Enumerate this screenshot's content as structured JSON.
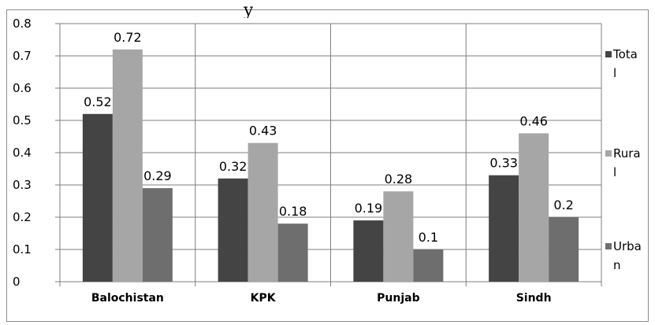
{
  "chart_data": {
    "type": "bar",
    "categories": [
      "Balochistan",
      "KPK",
      "Punjab",
      "Sindh"
    ],
    "series": [
      {
        "name": "Total",
        "values": [
          0.52,
          0.32,
          0.19,
          0.33
        ],
        "labels": [
          "0.52",
          "0.32",
          "0.19",
          "0.33"
        ],
        "color": "#444444",
        "legend_lines": [
          "Tota",
          "l"
        ]
      },
      {
        "name": "Rural",
        "values": [
          0.72,
          0.43,
          0.28,
          0.46
        ],
        "labels": [
          "0.72",
          "0.43",
          "0.28",
          "0.46"
        ],
        "color": "#a6a6a6",
        "legend_lines": [
          "Rura",
          "l"
        ]
      },
      {
        "name": "Urban",
        "values": [
          0.29,
          0.18,
          0.1,
          0.2
        ],
        "labels": [
          "0.29",
          "0.18",
          "0.1",
          "0.2"
        ],
        "color": "#6e6e6e",
        "legend_lines": [
          "Urba",
          "n"
        ]
      }
    ],
    "ylim": [
      0,
      0.8
    ],
    "yticks": [
      "0",
      "0.1",
      "0.2",
      "0.3",
      "0.4",
      "0.5",
      "0.6",
      "0.7",
      "0.8"
    ],
    "grid": "horizontal and vertical",
    "legend": "right"
  }
}
